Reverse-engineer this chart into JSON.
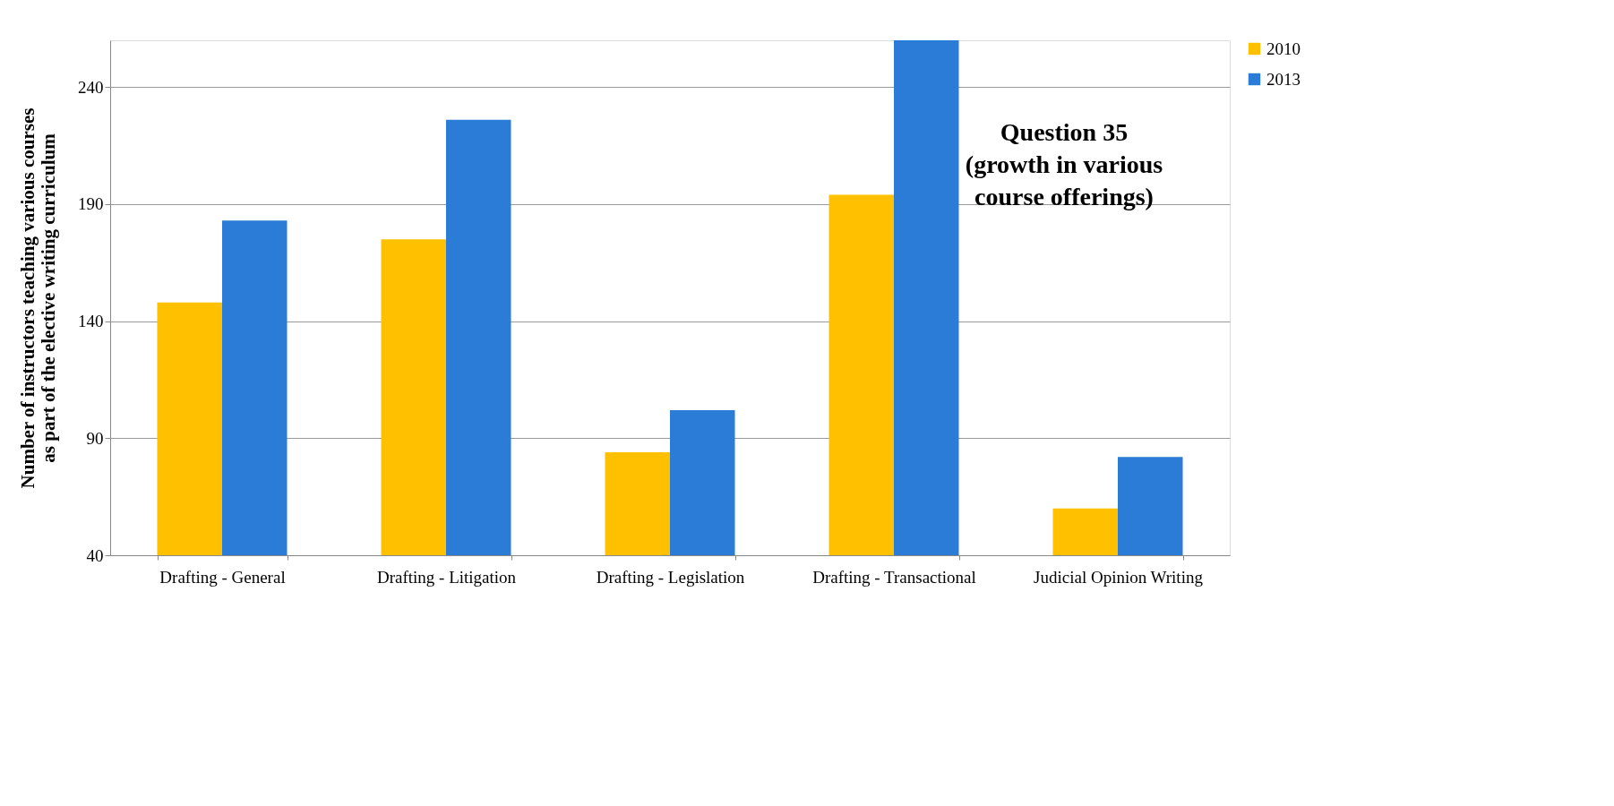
{
  "chart_data": {
    "type": "bar",
    "title": "Question 35\n(growth in various\ncourse offerings)",
    "ylabel": "Number of instructors teaching  various  courses\nas part of the elective writing curriculum",
    "categories": [
      "Drafting - General",
      "Drafting - Litigation",
      "Drafting - Legislation",
      "Drafting - Transactional",
      "Judicial Opinion Writing"
    ],
    "series": [
      {
        "name": "2010",
        "color": "#ffc000",
        "values": [
          148,
          175,
          84,
          194,
          60
        ]
      },
      {
        "name": "2013",
        "color": "#2b7cd6",
        "values": [
          183,
          226,
          102,
          260,
          82
        ]
      }
    ],
    "ylim": [
      40,
      260
    ],
    "yticks": [
      40,
      90,
      140,
      190,
      240
    ],
    "grid": "y",
    "legend": "right"
  }
}
